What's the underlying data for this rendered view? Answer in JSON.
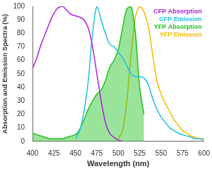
{
  "chart_data": {
    "type": "line",
    "xlabel": "Wavelength (nm)",
    "ylabel": "Absorption and Emission Spectra (%)",
    "x": [
      400,
      405,
      410,
      415,
      420,
      425,
      430,
      435,
      440,
      445,
      450,
      455,
      460,
      465,
      470,
      475,
      480,
      485,
      490,
      495,
      500,
      505,
      510,
      515,
      520,
      525,
      530,
      535,
      540,
      545,
      550,
      555,
      560,
      565,
      570,
      575,
      580,
      585,
      590,
      595,
      600
    ],
    "series": [
      {
        "name": "CFP Absorption",
        "color": "#b020e0",
        "values": [
          54,
          62,
          72,
          80,
          88,
          95,
          99,
          100,
          97,
          94,
          93,
          92,
          90,
          84,
          70,
          50,
          30,
          14,
          6,
          3,
          1,
          0,
          null,
          null,
          null,
          null,
          null,
          null,
          null,
          null,
          null,
          null,
          null,
          null,
          null,
          null,
          null,
          null,
          null,
          null,
          null
        ]
      },
      {
        "name": "CFP Emission",
        "color": "#20c0e0",
        "values": [
          null,
          null,
          null,
          null,
          null,
          null,
          null,
          null,
          null,
          null,
          2,
          8,
          22,
          45,
          80,
          100,
          90,
          80,
          72,
          70,
          66,
          62,
          56,
          50,
          48,
          48,
          47,
          42,
          32,
          24,
          18,
          14,
          10,
          8,
          6,
          5,
          4,
          3,
          2,
          2,
          1
        ]
      },
      {
        "name": "YFP Absorption",
        "color": "#20c020",
        "values": [
          6,
          5,
          4,
          3,
          2,
          2,
          2,
          2,
          3,
          4,
          5,
          9,
          16,
          24,
          30,
          35,
          38,
          45,
          55,
          60,
          68,
          84,
          98,
          100,
          80,
          40,
          20,
          null,
          null,
          null,
          null,
          null,
          null,
          null,
          null,
          null,
          null,
          null,
          null,
          null,
          null
        ]
      },
      {
        "name": "YFP Emission",
        "color": "#f8b800",
        "values": [
          null,
          null,
          null,
          null,
          null,
          null,
          null,
          null,
          null,
          null,
          null,
          null,
          null,
          null,
          null,
          null,
          null,
          null,
          null,
          null,
          2,
          8,
          30,
          65,
          92,
          100,
          96,
          85,
          65,
          45,
          35,
          28,
          22,
          16,
          12,
          8,
          6,
          4,
          3,
          2,
          2
        ]
      }
    ],
    "xlim": [
      400,
      600
    ],
    "xticks": [
      400,
      425,
      450,
      475,
      500,
      525,
      550,
      575,
      600
    ],
    "ylim": [
      0,
      100
    ],
    "yticks": [
      0,
      10,
      20,
      30,
      40,
      50,
      60,
      70,
      80,
      90,
      100
    ],
    "grid": false,
    "legend": "upper right"
  }
}
